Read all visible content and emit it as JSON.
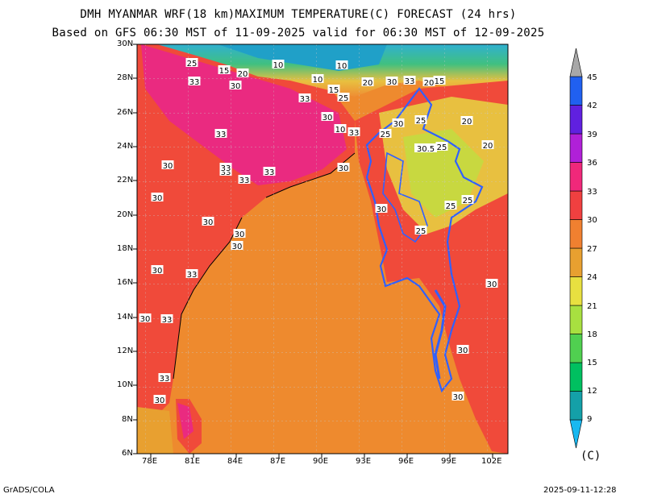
{
  "title_line1": "DMH MYANMAR WRF(18 km)MAXIMUM TEMPERATURE(C) FORECAST (24 hrs)",
  "title_line2": "Based on GFS 06:30 MST of 11-09-2025 valid for 06:30 MST of 12-09-2025",
  "lat_labels": [
    "30N",
    "28N",
    "26N",
    "24N",
    "22N",
    "20N",
    "18N",
    "16N",
    "14N",
    "12N",
    "10N",
    "8N",
    "6N"
  ],
  "lon_labels": [
    "78E",
    "81E",
    "84E",
    "87E",
    "90E",
    "93E",
    "96E",
    "99E",
    "102E"
  ],
  "colorbar": {
    "levels": [
      "9",
      "12",
      "15",
      "18",
      "21",
      "24",
      "27",
      "30",
      "33",
      "36",
      "39",
      "42",
      "45"
    ],
    "colors": [
      "#18b8c8",
      "#14a0a8",
      "#00c060",
      "#50d050",
      "#a8e040",
      "#e8e040",
      "#e8a030",
      "#f08030",
      "#f04040",
      "#f0287a",
      "#b020d8",
      "#6020e0",
      "#2060f0",
      "#a8a8a8"
    ],
    "unit": "(C)"
  },
  "contour_labels": [
    "10",
    "10",
    "10",
    "10",
    "15",
    "15",
    "15",
    "20",
    "20",
    "20",
    "20",
    "20",
    "25",
    "25",
    "25",
    "25",
    "25",
    "25",
    "25",
    "25",
    "30",
    "30",
    "30",
    "30",
    "30",
    "30",
    "30",
    "30",
    "30",
    "30",
    "30",
    "30",
    "30",
    "30",
    "30",
    "30",
    "30",
    "33",
    "33",
    "33",
    "33",
    "33",
    "33",
    "33",
    "33",
    "33",
    "33",
    "33",
    "33",
    "30.5"
  ],
  "footer_left": "GrADS/COLA",
  "footer_right": "2025-09-11-12:28",
  "region_colors": {
    "sea": "#ee8a2e",
    "land_hot": "#f04a3a",
    "land_very_hot": "#ea2a80",
    "cool": "#e8c040",
    "outline": "#3060ff"
  }
}
